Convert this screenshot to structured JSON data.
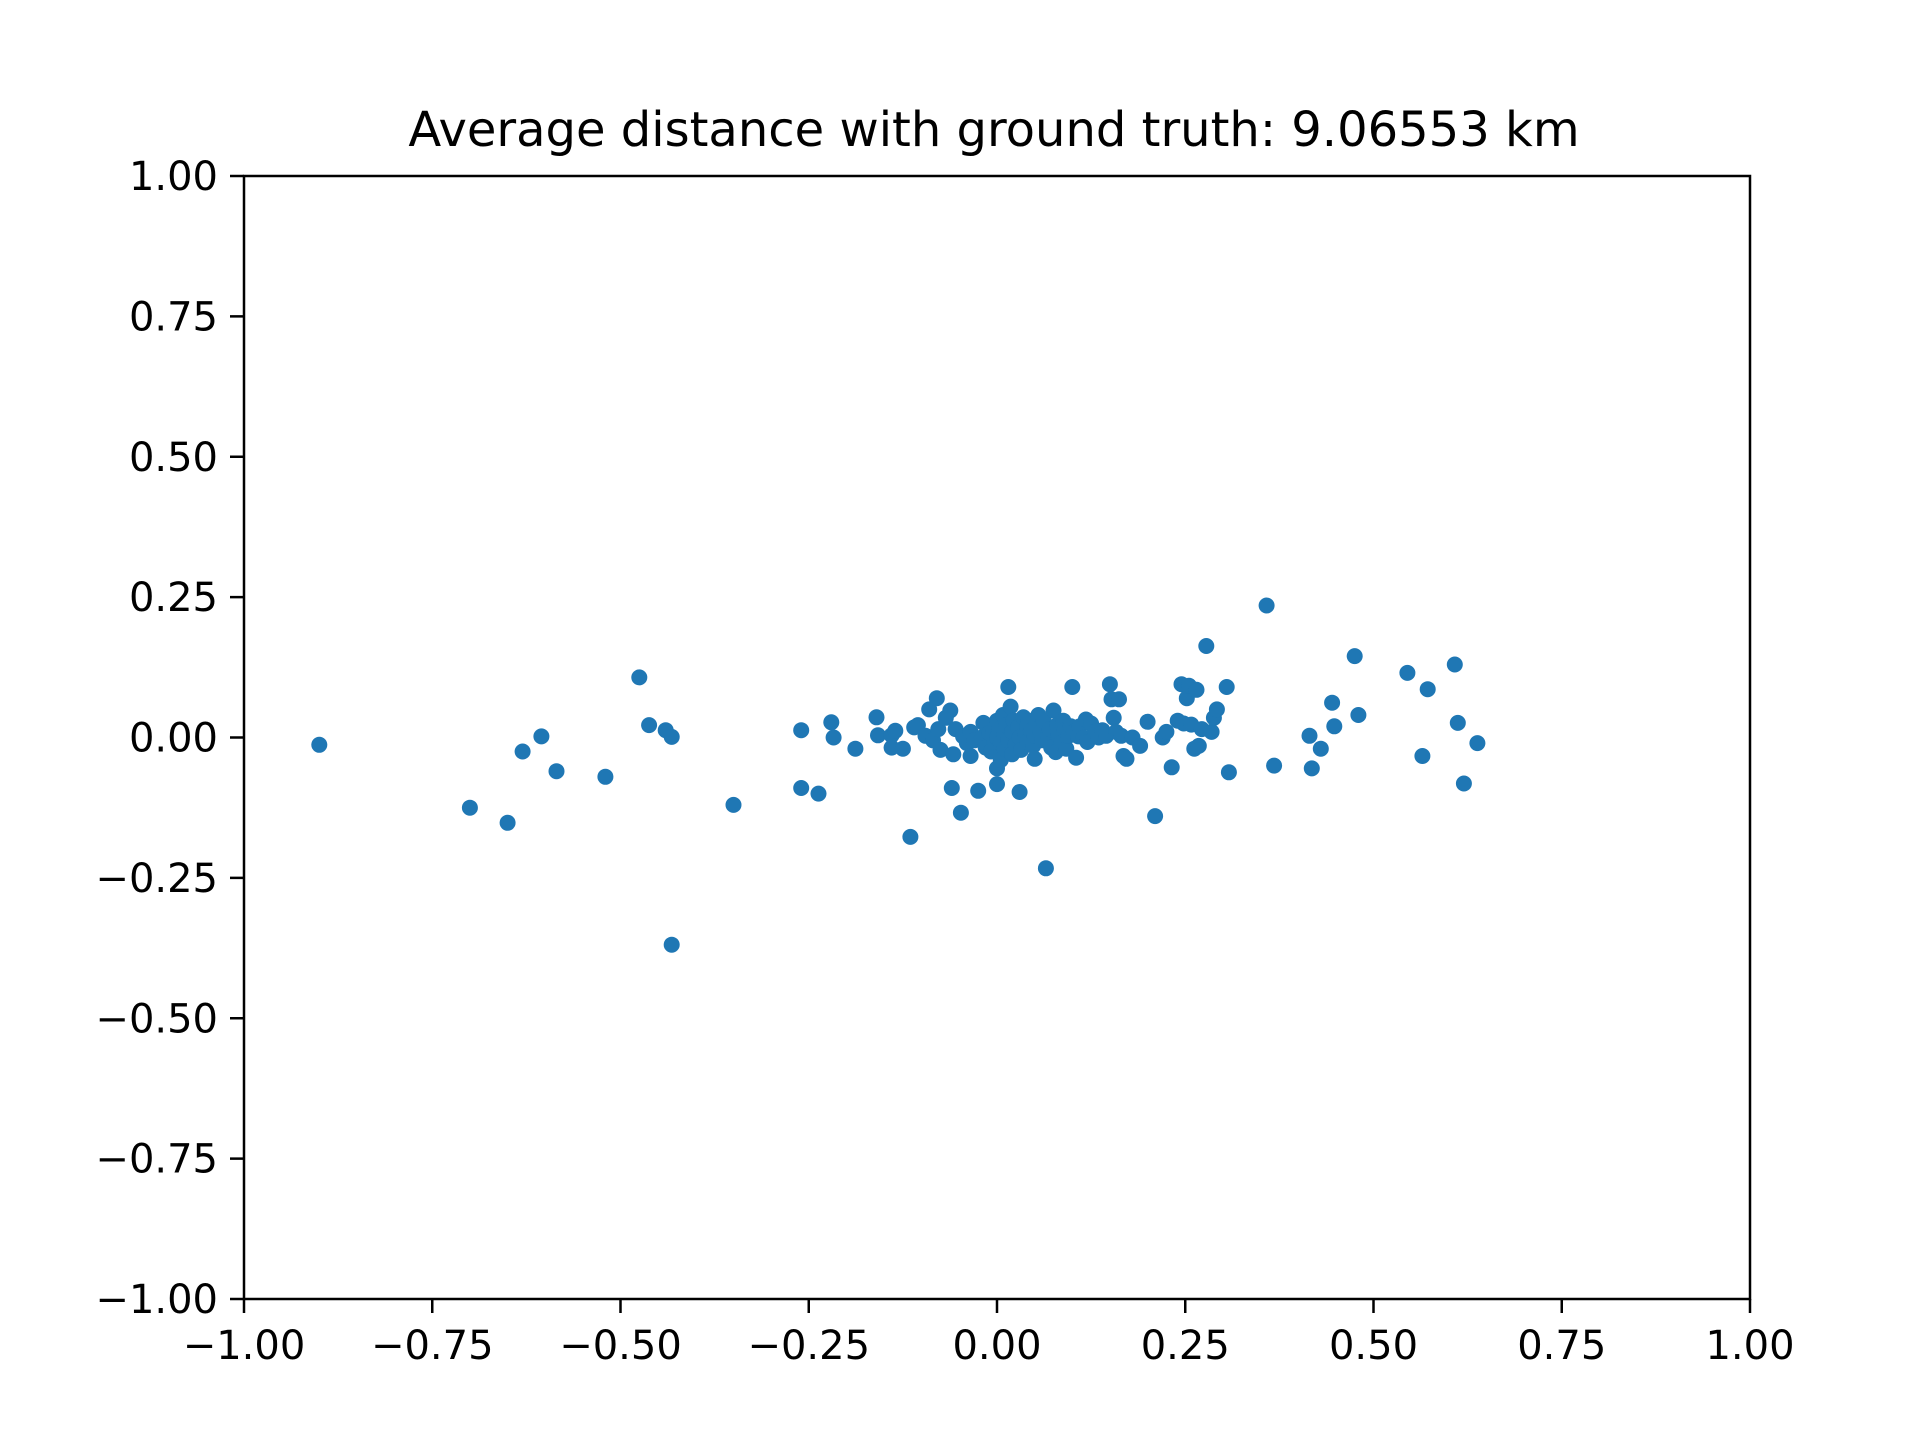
{
  "chart_data": {
    "type": "scatter",
    "title": "Average distance with ground truth: 9.06553 km",
    "xlabel": "",
    "ylabel": "",
    "xlim": [
      -1.0,
      1.0
    ],
    "ylim": [
      -1.0,
      1.0
    ],
    "xticks": [
      "−1.00",
      "−0.75",
      "−0.50",
      "−0.25",
      "0.00",
      "0.25",
      "0.50",
      "0.75",
      "1.00"
    ],
    "yticks": [
      "1.00",
      "0.75",
      "0.50",
      "0.25",
      "0.00",
      "−0.25",
      "−0.50",
      "−0.75",
      "−1.00"
    ],
    "grid": false,
    "legend": "none",
    "series": [
      {
        "color": "#1f77b4",
        "points": [
          [
            -0.9,
            -0.013
          ],
          [
            -0.7,
            -0.125
          ],
          [
            -0.65,
            -0.152
          ],
          [
            -0.63,
            -0.025
          ],
          [
            -0.605,
            0.002
          ],
          [
            -0.585,
            -0.06
          ],
          [
            -0.52,
            -0.07
          ],
          [
            -0.475,
            0.107
          ],
          [
            -0.462,
            0.022
          ],
          [
            -0.44,
            0.013
          ],
          [
            -0.432,
            0.001
          ],
          [
            -0.432,
            -0.369
          ],
          [
            -0.35,
            -0.12
          ],
          [
            -0.26,
            0.013
          ],
          [
            -0.26,
            -0.09
          ],
          [
            -0.237,
            -0.1
          ],
          [
            -0.22,
            0.027
          ],
          [
            -0.217,
            0.0
          ],
          [
            -0.188,
            -0.02
          ],
          [
            -0.16,
            0.036
          ],
          [
            -0.158,
            0.004
          ],
          [
            -0.14,
            0.004
          ],
          [
            -0.14,
            -0.018
          ],
          [
            -0.135,
            0.012
          ],
          [
            -0.125,
            -0.02
          ],
          [
            -0.115,
            -0.177
          ],
          [
            -0.11,
            0.018
          ],
          [
            -0.105,
            0.022
          ],
          [
            -0.095,
            0.003
          ],
          [
            -0.09,
            0.05
          ],
          [
            -0.085,
            -0.005
          ],
          [
            -0.08,
            0.07
          ],
          [
            -0.078,
            0.015
          ],
          [
            -0.075,
            -0.022
          ],
          [
            -0.068,
            0.035
          ],
          [
            -0.062,
            0.048
          ],
          [
            -0.06,
            -0.09
          ],
          [
            -0.058,
            -0.03
          ],
          [
            -0.055,
            0.015
          ],
          [
            -0.048,
            -0.134
          ],
          [
            -0.045,
            0.002
          ],
          [
            -0.04,
            -0.01
          ],
          [
            -0.035,
            0.01
          ],
          [
            -0.035,
            -0.033
          ],
          [
            -0.03,
            -0.005
          ],
          [
            -0.025,
            -0.095
          ],
          [
            -0.02,
            0.0
          ],
          [
            -0.018,
            0.026
          ],
          [
            -0.015,
            -0.018
          ],
          [
            -0.01,
            0.008
          ],
          [
            -0.008,
            -0.025
          ],
          [
            -0.005,
            0.012
          ],
          [
            -0.003,
            -0.008
          ],
          [
            0.0,
            0.03
          ],
          [
            0.0,
            0.0
          ],
          [
            0.0,
            -0.055
          ],
          [
            0.0,
            -0.083
          ],
          [
            0.003,
            0.015
          ],
          [
            0.005,
            -0.01
          ],
          [
            0.005,
            -0.04
          ],
          [
            0.008,
            0.04
          ],
          [
            0.01,
            0.005
          ],
          [
            0.01,
            -0.02
          ],
          [
            0.012,
            0.022
          ],
          [
            0.015,
            0.09
          ],
          [
            0.015,
            -0.005
          ],
          [
            0.018,
            0.055
          ],
          [
            0.02,
            0.01
          ],
          [
            0.02,
            -0.03
          ],
          [
            0.022,
            0.03
          ],
          [
            0.025,
            -0.012
          ],
          [
            0.028,
            0.018
          ],
          [
            0.03,
            0.0
          ],
          [
            0.03,
            -0.097
          ],
          [
            0.032,
            -0.022
          ],
          [
            0.035,
            0.036
          ],
          [
            0.038,
            0.005
          ],
          [
            0.04,
            -0.008
          ],
          [
            0.04,
            0.022
          ],
          [
            0.042,
            0.03
          ],
          [
            0.045,
            0.012
          ],
          [
            0.048,
            -0.015
          ],
          [
            0.05,
            -0.038
          ],
          [
            0.05,
            0.003
          ],
          [
            0.052,
            0.025
          ],
          [
            0.055,
            0.04
          ],
          [
            0.058,
            0.01
          ],
          [
            0.06,
            -0.005
          ],
          [
            0.062,
            0.03
          ],
          [
            0.065,
            -0.233
          ],
          [
            0.068,
            0.0
          ],
          [
            0.07,
            0.015
          ],
          [
            0.072,
            -0.018
          ],
          [
            0.075,
            0.048
          ],
          [
            0.078,
            -0.026
          ],
          [
            0.08,
            0.022
          ],
          [
            0.082,
            0.005
          ],
          [
            0.085,
            -0.01
          ],
          [
            0.088,
            0.03
          ],
          [
            0.09,
            0.013
          ],
          [
            0.092,
            -0.02
          ],
          [
            0.095,
            0.003
          ],
          [
            0.098,
            0.02
          ],
          [
            0.1,
            0.09
          ],
          [
            0.102,
            0.01
          ],
          [
            0.105,
            -0.036
          ],
          [
            0.108,
            0.002
          ],
          [
            0.11,
            0.02
          ],
          [
            0.115,
            0.0
          ],
          [
            0.118,
            0.032
          ],
          [
            0.12,
            -0.008
          ],
          [
            0.125,
            0.025
          ],
          [
            0.13,
            0.01
          ],
          [
            0.135,
            0.0
          ],
          [
            0.14,
            0.013
          ],
          [
            0.145,
            0.003
          ],
          [
            0.15,
            0.095
          ],
          [
            0.152,
            0.068
          ],
          [
            0.155,
            0.035
          ],
          [
            0.158,
            0.01
          ],
          [
            0.162,
            0.068
          ],
          [
            0.165,
            0.003
          ],
          [
            0.168,
            -0.033
          ],
          [
            0.172,
            -0.038
          ],
          [
            0.18,
            0.0
          ],
          [
            0.19,
            -0.015
          ],
          [
            0.2,
            0.028
          ],
          [
            0.21,
            -0.14
          ],
          [
            0.22,
            0.0
          ],
          [
            0.225,
            0.01
          ],
          [
            0.232,
            -0.053
          ],
          [
            0.24,
            0.03
          ],
          [
            0.245,
            0.095
          ],
          [
            0.248,
            0.025
          ],
          [
            0.252,
            0.07
          ],
          [
            0.255,
            0.092
          ],
          [
            0.258,
            0.023
          ],
          [
            0.262,
            -0.02
          ],
          [
            0.265,
            0.085
          ],
          [
            0.268,
            -0.015
          ],
          [
            0.272,
            0.015
          ],
          [
            0.278,
            0.163
          ],
          [
            0.285,
            0.01
          ],
          [
            0.288,
            0.035
          ],
          [
            0.292,
            0.05
          ],
          [
            0.305,
            0.09
          ],
          [
            0.308,
            -0.062
          ],
          [
            0.358,
            0.235
          ],
          [
            0.368,
            -0.05
          ],
          [
            0.415,
            0.003
          ],
          [
            0.418,
            -0.055
          ],
          [
            0.43,
            -0.02
          ],
          [
            0.445,
            0.062
          ],
          [
            0.448,
            0.02
          ],
          [
            0.475,
            0.145
          ],
          [
            0.48,
            0.04
          ],
          [
            0.545,
            0.115
          ],
          [
            0.565,
            -0.033
          ],
          [
            0.572,
            0.086
          ],
          [
            0.608,
            0.13
          ],
          [
            0.612,
            0.026
          ],
          [
            0.62,
            -0.082
          ],
          [
            0.638,
            -0.01
          ]
        ]
      }
    ]
  }
}
